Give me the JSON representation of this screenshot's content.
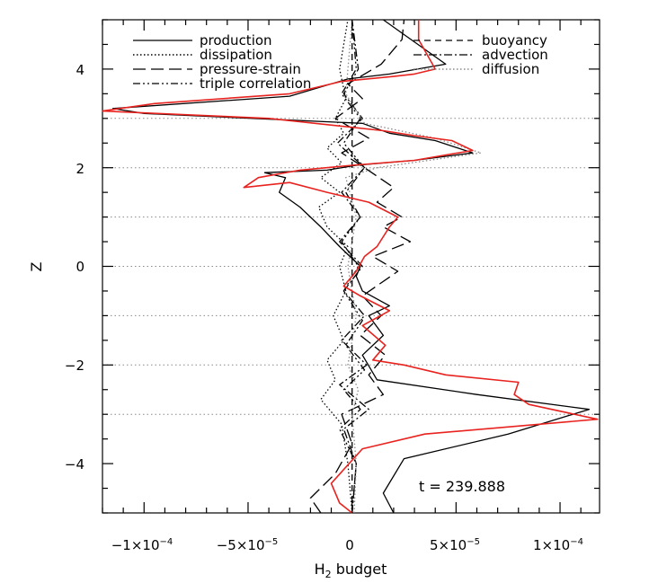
{
  "chart_data": {
    "type": "line",
    "xlabel": "H",
    "xlabel_sub": "2",
    "xlabel_suffix": " budget",
    "ylabel": "Z",
    "xlim": [
      -0.00012,
      0.000119
    ],
    "ylim": [
      -5,
      5
    ],
    "x_ticks": [
      {
        "value": -0.0001,
        "label": "−1×10",
        "exp": "−4"
      },
      {
        "value": -5e-05,
        "label": "−5×10",
        "exp": "−5"
      },
      {
        "value": 0,
        "label": "0",
        "exp": ""
      },
      {
        "value": 5e-05,
        "label": "5×10",
        "exp": "−5"
      },
      {
        "value": 0.0001,
        "label": "1×10",
        "exp": "−4"
      }
    ],
    "y_ticks": [
      {
        "value": -4,
        "label": "−4"
      },
      {
        "value": -2,
        "label": "−2"
      },
      {
        "value": 0,
        "label": "0"
      },
      {
        "value": 2,
        "label": "2"
      },
      {
        "value": 4,
        "label": "4"
      }
    ],
    "grid": "horizontal dotted lines at z = -3, -2, -1, 0, 1, 2, 3",
    "grid_levels": [
      -3,
      -2,
      -1,
      0,
      1,
      2,
      3
    ],
    "legend_placement": "top, two columns",
    "annotation": "t  =  239.888",
    "series": [
      {
        "name": "production",
        "style": "solid",
        "color": "#000000",
        "points": [
          [
            2e-05,
            -5.0
          ],
          [
            1.5e-05,
            -4.6
          ],
          [
            2.5e-05,
            -3.9
          ],
          [
            7.5e-05,
            -3.4
          ],
          [
            0.000114,
            -2.9
          ],
          [
            6e-05,
            -2.6
          ],
          [
            1.2e-05,
            -2.3
          ],
          [
            5e-06,
            -1.8
          ],
          [
            1.5e-05,
            -1.4
          ],
          [
            8e-06,
            -1.0
          ],
          [
            1.8e-05,
            -0.8
          ],
          [
            5e-06,
            -0.5
          ],
          [
            2e-06,
            -0.2
          ],
          [
            4e-06,
            0.0
          ],
          [
            -6e-06,
            0.4
          ],
          [
            -1.5e-05,
            0.8
          ],
          [
            -2.5e-05,
            1.2
          ],
          [
            -3.5e-05,
            1.5
          ],
          [
            -3.2e-05,
            1.8
          ],
          [
            -4.2e-05,
            1.9
          ],
          [
            -1.2e-05,
            1.95
          ],
          [
            2e-06,
            2.05
          ],
          [
            3e-05,
            2.15
          ],
          [
            5.8e-05,
            2.3
          ],
          [
            4e-05,
            2.55
          ],
          [
            1.8e-05,
            2.7
          ],
          [
            5e-06,
            2.9
          ],
          [
            -0.0001,
            3.1
          ],
          [
            -0.000115,
            3.2
          ],
          [
            -3e-05,
            3.45
          ],
          [
            -2e-06,
            3.8
          ],
          [
            1.8e-05,
            3.9
          ],
          [
            4.5e-05,
            4.1
          ],
          [
            2.5e-05,
            4.7
          ],
          [
            1.5e-05,
            5.0
          ]
        ]
      },
      {
        "name": "dissipation",
        "style": "dotted",
        "color": "#000000",
        "points": [
          [
            0.0,
            -5.0
          ],
          [
            -2e-06,
            -4.0
          ],
          [
            -5e-06,
            -3.2
          ],
          [
            -1.5e-05,
            -2.7
          ],
          [
            -8e-06,
            -2.3
          ],
          [
            -1.2e-05,
            -1.9
          ],
          [
            -4e-06,
            -1.5
          ],
          [
            -9e-06,
            -1.0
          ],
          [
            -3e-06,
            -0.5
          ],
          [
            -6e-06,
            0.0
          ],
          [
            -2e-06,
            0.4
          ],
          [
            -1.2e-05,
            0.8
          ],
          [
            -1.6e-05,
            1.2
          ],
          [
            -6e-06,
            1.5
          ],
          [
            -1.5e-05,
            1.8
          ],
          [
            -5e-06,
            2.1
          ],
          [
            -1.2e-05,
            2.4
          ],
          [
            -4e-06,
            2.7
          ],
          [
            -8e-06,
            3.0
          ],
          [
            -3e-06,
            3.4
          ],
          [
            -6e-06,
            4.0
          ],
          [
            -2e-06,
            5.0
          ]
        ]
      },
      {
        "name": "pressure-strain",
        "style": "long-dash",
        "color": "#000000",
        "points": [
          [
            -1.5e-05,
            -5.0
          ],
          [
            -2e-05,
            -4.7
          ],
          [
            -8e-06,
            -4.2
          ],
          [
            0.0,
            -3.6
          ],
          [
            -5e-06,
            -3.0
          ],
          [
            1.5e-05,
            -2.6
          ],
          [
            8e-06,
            -2.2
          ],
          [
            1.6e-05,
            -1.8
          ],
          [
            4e-06,
            -1.4
          ],
          [
            1.4e-05,
            -1.0
          ],
          [
            5e-06,
            -0.6
          ],
          [
            2.2e-05,
            -0.1
          ],
          [
            1e-05,
            0.2
          ],
          [
            2.8e-05,
            0.5
          ],
          [
            1.5e-05,
            0.8
          ],
          [
            2.4e-05,
            1.0
          ],
          [
            1.2e-05,
            1.3
          ],
          [
            2e-05,
            1.6
          ],
          [
            6e-06,
            2.0
          ],
          [
            -5e-06,
            2.3
          ],
          [
            8e-06,
            2.6
          ],
          [
            -8e-06,
            3.0
          ],
          [
            5e-06,
            3.4
          ],
          [
            -2e-06,
            3.7
          ],
          [
            1.4e-05,
            4.1
          ],
          [
            2.4e-05,
            4.6
          ],
          [
            2.5e-05,
            5.0
          ]
        ]
      },
      {
        "name": "triple correlation",
        "style": "dash-dot-dot",
        "color": "#000000",
        "points": [
          [
            0.0,
            -5.0
          ],
          [
            2e-06,
            -4.0
          ],
          [
            -6e-06,
            -3.3
          ],
          [
            4e-06,
            -2.9
          ],
          [
            -4e-06,
            -2.5
          ],
          [
            6e-06,
            -2.1
          ],
          [
            -3e-06,
            -1.6
          ],
          [
            5e-06,
            -1.1
          ],
          [
            -4e-06,
            -0.5
          ],
          [
            3e-06,
            0.0
          ],
          [
            -5e-06,
            0.5
          ],
          [
            4e-06,
            1.0
          ],
          [
            -3e-06,
            1.5
          ],
          [
            6e-06,
            2.0
          ],
          [
            -4e-06,
            2.5
          ],
          [
            4e-06,
            3.0
          ],
          [
            -5e-06,
            3.5
          ],
          [
            2e-06,
            4.0
          ],
          [
            0.0,
            5.0
          ]
        ]
      },
      {
        "name": "buoyancy",
        "style": "short-dash",
        "color": "#000000",
        "points": [
          [
            0.0,
            -5.0
          ],
          [
            0.0,
            5.0
          ]
        ]
      },
      {
        "name": "advection",
        "style": "dash-dot",
        "color": "#000000",
        "points": [
          [
            0.0,
            -5.0
          ],
          [
            2e-06,
            -4.0
          ],
          [
            -4e-06,
            -3.3
          ],
          [
            8e-06,
            -2.9
          ],
          [
            -6e-06,
            -2.4
          ],
          [
            7e-06,
            -2.0
          ],
          [
            -5e-06,
            -1.5
          ],
          [
            6e-06,
            -1.0
          ],
          [
            -4e-06,
            -0.5
          ],
          [
            5e-06,
            0.0
          ],
          [
            -6e-06,
            0.5
          ],
          [
            4e-06,
            1.0
          ],
          [
            -5e-06,
            1.5
          ],
          [
            6e-06,
            2.0
          ],
          [
            -7e-06,
            2.5
          ],
          [
            5e-06,
            3.0
          ],
          [
            -4e-06,
            3.5
          ],
          [
            3e-06,
            4.0
          ],
          [
            0.0,
            5.0
          ]
        ]
      },
      {
        "name": "diffusion",
        "style": "gray-dotted",
        "color": "#888888",
        "points": [
          [
            1e-06,
            -5.0
          ],
          [
            2e-06,
            -4.0
          ],
          [
            0.0,
            -3.0
          ],
          [
            3e-06,
            -2.5
          ],
          [
            -2e-06,
            -2.0
          ],
          [
            2e-06,
            -1.0
          ],
          [
            -2e-06,
            0.0
          ],
          [
            2e-06,
            1.0
          ],
          [
            -3e-06,
            1.8
          ],
          [
            1.2e-05,
            2.0
          ],
          [
            6.2e-05,
            2.3
          ],
          [
            4e-05,
            2.6
          ],
          [
            6e-06,
            2.9
          ],
          [
            -3e-06,
            3.5
          ],
          [
            0.0,
            5.0
          ]
        ]
      },
      {
        "name": "",
        "style": "solid",
        "color": "#e8231f",
        "points": [
          [
            0.0,
            -5.0
          ],
          [
            -6e-06,
            -4.8
          ],
          [
            -1e-05,
            -4.4
          ],
          [
            5e-06,
            -3.7
          ],
          [
            3.5e-05,
            -3.4
          ],
          [
            0.000118,
            -3.1
          ],
          [
            8.5e-05,
            -2.8
          ],
          [
            7.8e-05,
            -2.6
          ],
          [
            8e-05,
            -2.35
          ],
          [
            4.5e-05,
            -2.2
          ],
          [
            2.5e-05,
            -2.0
          ],
          [
            1e-05,
            -1.9
          ],
          [
            1.6e-05,
            -1.6
          ],
          [
            5e-06,
            -1.2
          ],
          [
            1.8e-05,
            -0.9
          ],
          [
            4e-06,
            -0.6
          ],
          [
            -4e-06,
            -0.4
          ],
          [
            2e-06,
            -0.1
          ],
          [
            6e-06,
            0.2
          ],
          [
            1.2e-05,
            0.4
          ],
          [
            1.8e-05,
            0.8
          ],
          [
            2.2e-05,
            1.0
          ],
          [
            8e-06,
            1.3
          ],
          [
            -1.2e-05,
            1.5
          ],
          [
            -3e-05,
            1.7
          ],
          [
            -5.2e-05,
            1.6
          ],
          [
            -4.5e-05,
            1.8
          ],
          [
            -2.5e-05,
            1.95
          ],
          [
            0.0,
            2.05
          ],
          [
            3e-05,
            2.15
          ],
          [
            5.8e-05,
            2.35
          ],
          [
            4.8e-05,
            2.55
          ],
          [
            3e-05,
            2.65
          ],
          [
            1.5e-05,
            2.75
          ],
          [
            -4e-05,
            3.0
          ],
          [
            -0.00012,
            3.15
          ],
          [
            -9.5e-05,
            3.3
          ],
          [
            -3e-05,
            3.5
          ],
          [
            -5e-06,
            3.75
          ],
          [
            2e-05,
            3.85
          ],
          [
            3e-05,
            3.9
          ],
          [
            4e-05,
            4.0
          ],
          [
            3.2e-05,
            4.6
          ],
          [
            3.2e-05,
            5.0
          ]
        ]
      }
    ]
  }
}
